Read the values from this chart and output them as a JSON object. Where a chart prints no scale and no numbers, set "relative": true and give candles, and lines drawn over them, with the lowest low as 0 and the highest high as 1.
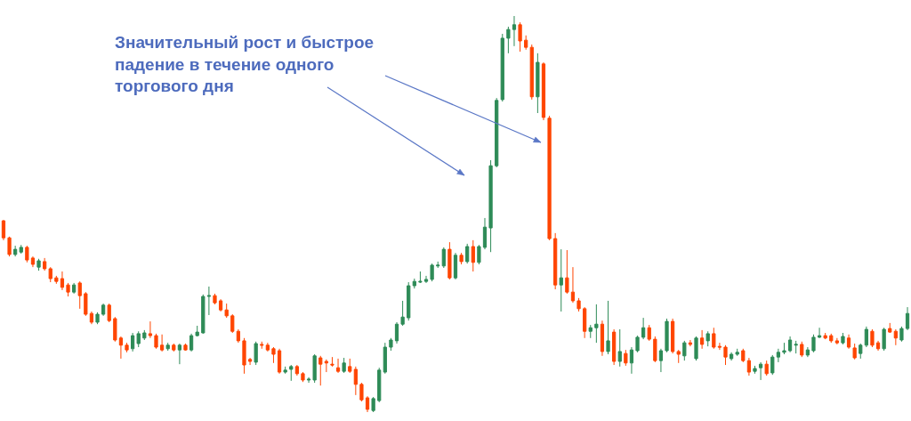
{
  "chart_data": {
    "type": "candlestick",
    "relative": true,
    "annotations": [
      "Значительный рост и быстрое падение в течение одного торгового дня"
    ],
    "categories": [
      null,
      null,
      null,
      null,
      null,
      null,
      null,
      null,
      null,
      null,
      null,
      null,
      null,
      null,
      null,
      null,
      null,
      null,
      null,
      null,
      null,
      null,
      null,
      null,
      null,
      null,
      null,
      null,
      null,
      null,
      null,
      null,
      null,
      null,
      null,
      null,
      null,
      null,
      null,
      null,
      null,
      null,
      null,
      null,
      null,
      null,
      null,
      null,
      null,
      null,
      null,
      null,
      null,
      null,
      null,
      null,
      null,
      null,
      null,
      null,
      null,
      null,
      null,
      null,
      null,
      null,
      null,
      null,
      null,
      null,
      null,
      null,
      null,
      null,
      null,
      null,
      null,
      null,
      null,
      null,
      null,
      null,
      null,
      null,
      null,
      null,
      null,
      null,
      null,
      null,
      null,
      null,
      null,
      null,
      null,
      null,
      null,
      null,
      null,
      null,
      null,
      null,
      null,
      null,
      null,
      null,
      null,
      null,
      null,
      null,
      null,
      null,
      null,
      null,
      null,
      null,
      null,
      null,
      null,
      null,
      null,
      null,
      null,
      null,
      null,
      null,
      null,
      null,
      null,
      null,
      null,
      null,
      null,
      null,
      null,
      null,
      null,
      null,
      null,
      null,
      null,
      null,
      null,
      null,
      null,
      null,
      null,
      null,
      null,
      null,
      null,
      null,
      null,
      null,
      null
    ],
    "ohlc": [
      [
        0.483,
        0.485,
        0.434,
        0.44
      ],
      [
        0.44,
        0.443,
        0.393,
        0.398
      ],
      [
        0.398,
        0.42,
        0.393,
        0.411
      ],
      [
        0.404,
        0.422,
        0.4,
        0.416
      ],
      [
        0.416,
        0.42,
        0.378,
        0.384
      ],
      [
        0.389,
        0.393,
        0.366,
        0.373
      ],
      [
        0.366,
        0.387,
        0.357,
        0.382
      ],
      [
        0.38,
        0.389,
        0.357,
        0.362
      ],
      [
        0.362,
        0.366,
        0.328,
        0.337
      ],
      [
        0.339,
        0.344,
        0.324,
        0.33
      ],
      [
        0.337,
        0.355,
        0.308,
        0.315
      ],
      [
        0.321,
        0.326,
        0.292,
        0.303
      ],
      [
        0.303,
        0.326,
        0.299,
        0.321
      ],
      [
        0.326,
        0.33,
        0.261,
        0.294
      ],
      [
        0.299,
        0.303,
        0.243,
        0.247
      ],
      [
        0.249,
        0.254,
        0.222,
        0.227
      ],
      [
        0.227,
        0.252,
        0.222,
        0.247
      ],
      [
        0.247,
        0.274,
        0.243,
        0.27
      ],
      [
        0.27,
        0.274,
        0.227,
        0.231
      ],
      [
        0.236,
        0.24,
        0.178,
        0.182
      ],
      [
        0.187,
        0.191,
        0.135,
        0.169
      ],
      [
        0.169,
        0.175,
        0.151,
        0.157
      ],
      [
        0.16,
        0.2,
        0.153,
        0.193
      ],
      [
        0.173,
        0.204,
        0.164,
        0.198
      ],
      [
        0.187,
        0.207,
        0.182,
        0.2
      ],
      [
        0.198,
        0.229,
        0.187,
        0.193
      ],
      [
        0.193,
        0.198,
        0.16,
        0.164
      ],
      [
        0.169,
        0.196,
        0.153,
        0.157
      ],
      [
        0.16,
        0.175,
        0.155,
        0.169
      ],
      [
        0.169,
        0.173,
        0.153,
        0.157
      ],
      [
        0.157,
        0.173,
        0.121,
        0.169
      ],
      [
        0.169,
        0.173,
        0.155,
        0.157
      ],
      [
        0.157,
        0.198,
        0.153,
        0.193
      ],
      [
        0.193,
        0.218,
        0.191,
        0.202
      ],
      [
        0.2,
        0.297,
        0.198,
        0.292
      ],
      [
        0.292,
        0.317,
        0.245,
        0.294
      ],
      [
        0.294,
        0.299,
        0.272,
        0.276
      ],
      [
        0.281,
        0.285,
        0.254,
        0.258
      ],
      [
        0.258,
        0.274,
        0.238,
        0.243
      ],
      [
        0.243,
        0.247,
        0.2,
        0.204
      ],
      [
        0.204,
        0.209,
        0.175,
        0.18
      ],
      [
        0.18,
        0.187,
        0.097,
        0.119
      ],
      [
        0.133,
        0.137,
        0.119,
        0.128
      ],
      [
        0.126,
        0.178,
        0.119,
        0.173
      ],
      [
        0.171,
        0.178,
        0.16,
        0.169
      ],
      [
        0.169,
        0.175,
        0.153,
        0.157
      ],
      [
        0.16,
        0.164,
        0.124,
        0.146
      ],
      [
        0.155,
        0.16,
        0.097,
        0.101
      ],
      [
        0.101,
        0.115,
        0.097,
        0.106
      ],
      [
        0.108,
        0.119,
        0.079,
        0.115
      ],
      [
        0.115,
        0.119,
        0.092,
        0.097
      ],
      [
        0.097,
        0.101,
        0.076,
        0.081
      ],
      [
        0.081,
        0.088,
        0.074,
        0.083
      ],
      [
        0.081,
        0.146,
        0.074,
        0.142
      ],
      [
        0.137,
        0.142,
        0.067,
        0.121
      ],
      [
        0.128,
        0.133,
        0.101,
        0.124
      ],
      [
        0.121,
        0.139,
        0.115,
        0.119
      ],
      [
        0.112,
        0.135,
        0.099,
        0.103
      ],
      [
        0.103,
        0.137,
        0.099,
        0.124
      ],
      [
        0.115,
        0.135,
        0.099,
        0.103
      ],
      [
        0.108,
        0.115,
        0.043,
        0.07
      ],
      [
        0.07,
        0.074,
        0.027,
        0.031
      ],
      [
        0.036,
        0.04,
        0,
        0.007
      ],
      [
        0.004,
        0.038,
        0,
        0.034
      ],
      [
        0.029,
        0.112,
        0.025,
        0.106
      ],
      [
        0.101,
        0.175,
        0.097,
        0.164
      ],
      [
        0.164,
        0.187,
        0.155,
        0.182
      ],
      [
        0.18,
        0.227,
        0.173,
        0.222
      ],
      [
        0.222,
        0.281,
        0.218,
        0.24
      ],
      [
        0.238,
        0.328,
        0.231,
        0.319
      ],
      [
        0.319,
        0.337,
        0.312,
        0.33
      ],
      [
        0.328,
        0.355,
        0.326,
        0.33
      ],
      [
        0.33,
        0.344,
        0.326,
        0.335
      ],
      [
        0.335,
        0.375,
        0.33,
        0.371
      ],
      [
        0.369,
        0.38,
        0.364,
        0.371
      ],
      [
        0.369,
        0.416,
        0.364,
        0.411
      ],
      [
        0.411,
        0.429,
        0.335,
        0.339
      ],
      [
        0.339,
        0.402,
        0.335,
        0.396
      ],
      [
        0.396,
        0.402,
        0.373,
        0.38
      ],
      [
        0.38,
        0.425,
        0.375,
        0.418
      ],
      [
        0.418,
        0.434,
        0.355,
        0.378
      ],
      [
        0.378,
        0.422,
        0.373,
        0.418
      ],
      [
        0.416,
        0.49,
        0.411,
        0.467
      ],
      [
        0.465,
        0.636,
        0.404,
        0.622
      ],
      [
        0.622,
        0.793,
        0.618,
        0.787
      ],
      [
        0.789,
        0.955,
        0.784,
        0.944
      ],
      [
        0.944,
        0.973,
        0.906,
        0.966
      ],
      [
        0.966,
        1,
        0.924,
        0.978
      ],
      [
        0.978,
        0.984,
        0.91,
        0.937
      ],
      [
        0.939,
        0.951,
        0.915,
        0.921
      ],
      [
        0.921,
        0.928,
        0.789,
        0.796
      ],
      [
        0.796,
        0.906,
        0.755,
        0.883
      ],
      [
        0.879,
        0.883,
        0.737,
        0.744
      ],
      [
        0.742,
        0.748,
        0.434,
        0.438
      ],
      [
        0.438,
        0.452,
        0.31,
        0.321
      ],
      [
        0.321,
        0.411,
        0.254,
        0.339
      ],
      [
        0.339,
        0.409,
        0.299,
        0.303
      ],
      [
        0.303,
        0.366,
        0.276,
        0.281
      ],
      [
        0.281,
        0.288,
        0.254,
        0.261
      ],
      [
        0.261,
        0.265,
        0.187,
        0.204
      ],
      [
        0.204,
        0.22,
        0.187,
        0.213
      ],
      [
        0.213,
        0.272,
        0.175,
        0.222
      ],
      [
        0.222,
        0.231,
        0.142,
        0.153
      ],
      [
        0.153,
        0.281,
        0.146,
        0.18
      ],
      [
        0.202,
        0.209,
        0.119,
        0.128
      ],
      [
        0.128,
        0.209,
        0.115,
        0.153
      ],
      [
        0.148,
        0.157,
        0.117,
        0.124
      ],
      [
        0.124,
        0.164,
        0.097,
        0.157
      ],
      [
        0.155,
        0.193,
        0.151,
        0.189
      ],
      [
        0.189,
        0.238,
        0.184,
        0.213
      ],
      [
        0.213,
        0.22,
        0.18,
        0.184
      ],
      [
        0.184,
        0.191,
        0.126,
        0.13
      ],
      [
        0.13,
        0.16,
        0.101,
        0.155
      ],
      [
        0.155,
        0.236,
        0.151,
        0.229
      ],
      [
        0.229,
        0.236,
        0.148,
        0.153
      ],
      [
        0.153,
        0.157,
        0.124,
        0.146
      ],
      [
        0.142,
        0.18,
        0.13,
        0.175
      ],
      [
        0.175,
        0.182,
        0.166,
        0.171
      ],
      [
        0.135,
        0.191,
        0.13,
        0.187
      ],
      [
        0.187,
        0.207,
        0.16,
        0.171
      ],
      [
        0.18,
        0.204,
        0.166,
        0.198
      ],
      [
        0.198,
        0.213,
        0.16,
        0.164
      ],
      [
        0.166,
        0.175,
        0.157,
        0.164
      ],
      [
        0.164,
        0.169,
        0.119,
        0.139
      ],
      [
        0.135,
        0.151,
        0.13,
        0.146
      ],
      [
        0.146,
        0.16,
        0.142,
        0.151
      ],
      [
        0.155,
        0.16,
        0.126,
        0.13
      ],
      [
        0.13,
        0.137,
        0.092,
        0.101
      ],
      [
        0.103,
        0.117,
        0.097,
        0.11
      ],
      [
        0.112,
        0.126,
        0.081,
        0.121
      ],
      [
        0.121,
        0.13,
        0.092,
        0.097
      ],
      [
        0.099,
        0.144,
        0.094,
        0.139
      ],
      [
        0.139,
        0.16,
        0.126,
        0.151
      ],
      [
        0.151,
        0.175,
        0.146,
        0.155
      ],
      [
        0.155,
        0.191,
        0.151,
        0.182
      ],
      [
        0.169,
        0.18,
        0.148,
        0.171
      ],
      [
        0.171,
        0.178,
        0.139,
        0.144
      ],
      [
        0.144,
        0.164,
        0.139,
        0.157
      ],
      [
        0.155,
        0.196,
        0.151,
        0.189
      ],
      [
        0.189,
        0.213,
        0.187,
        0.193
      ],
      [
        0.193,
        0.2,
        0.184,
        0.187
      ],
      [
        0.193,
        0.198,
        0.175,
        0.18
      ],
      [
        0.18,
        0.187,
        0.171,
        0.175
      ],
      [
        0.175,
        0.2,
        0.171,
        0.191
      ],
      [
        0.187,
        0.196,
        0.16,
        0.164
      ],
      [
        0.162,
        0.173,
        0.133,
        0.137
      ],
      [
        0.148,
        0.173,
        0.135,
        0.169
      ],
      [
        0.169,
        0.216,
        0.164,
        0.209
      ],
      [
        0.204,
        0.209,
        0.164,
        0.169
      ],
      [
        0.175,
        0.18,
        0.155,
        0.16
      ],
      [
        0.16,
        0.213,
        0.155,
        0.209
      ],
      [
        0.211,
        0.225,
        0.2,
        0.202
      ],
      [
        0.204,
        0.209,
        0.169,
        0.187
      ],
      [
        0.182,
        0.216,
        0.178,
        0.211
      ],
      [
        0.211,
        0.265,
        0.207,
        0.249
      ]
    ],
    "colors": [
      "#ff4500",
      "#ff4500",
      "#2e8b57",
      "#2e8b57",
      "#ff4500",
      "#ff4500",
      "#2e8b57",
      "#ff4500",
      "#ff4500",
      "#ff4500",
      "#ff4500",
      "#ff4500",
      "#2e8b57",
      "#ff4500",
      "#ff4500",
      "#ff4500",
      "#2e8b57",
      "#2e8b57",
      "#ff4500",
      "#ff4500",
      "#ff4500",
      "#ff4500",
      "#2e8b57",
      "#2e8b57",
      "#2e8b57",
      "#ff4500",
      "#ff4500",
      "#ff4500",
      "#2e8b57",
      "#ff4500",
      "#2e8b57",
      "#ff4500",
      "#2e8b57",
      "#2e8b57",
      "#2e8b57",
      "#2e8b57",
      "#ff4500",
      "#ff4500",
      "#ff4500",
      "#ff4500",
      "#ff4500",
      "#ff4500",
      "#ff4500",
      "#2e8b57",
      "#ff4500",
      "#ff4500",
      "#ff4500",
      "#ff4500",
      "#2e8b57",
      "#2e8b57",
      "#ff4500",
      "#ff4500",
      "#2e8b57",
      "#2e8b57",
      "#ff4500",
      "#ff4500",
      "#ff4500",
      "#ff4500",
      "#2e8b57",
      "#ff4500",
      "#ff4500",
      "#ff4500",
      "#ff4500",
      "#2e8b57",
      "#2e8b57",
      "#2e8b57",
      "#2e8b57",
      "#2e8b57",
      "#2e8b57",
      "#2e8b57",
      "#2e8b57",
      "#2e8b57",
      "#2e8b57",
      "#2e8b57",
      "#2e8b57",
      "#2e8b57",
      "#ff4500",
      "#2e8b57",
      "#ff4500",
      "#2e8b57",
      "#ff4500",
      "#2e8b57",
      "#2e8b57",
      "#2e8b57",
      "#2e8b57",
      "#2e8b57",
      "#2e8b57",
      "#2e8b57",
      "#ff4500",
      "#ff4500",
      "#ff4500",
      "#2e8b57",
      "#ff4500",
      "#ff4500",
      "#ff4500",
      "#2e8b57",
      "#ff4500",
      "#ff4500",
      "#ff4500",
      "#ff4500",
      "#2e8b57",
      "#2e8b57",
      "#ff4500",
      "#2e8b57",
      "#ff4500",
      "#2e8b57",
      "#ff4500",
      "#2e8b57",
      "#2e8b57",
      "#2e8b57",
      "#ff4500",
      "#ff4500",
      "#2e8b57",
      "#2e8b57",
      "#ff4500",
      "#ff4500",
      "#2e8b57",
      "#ff4500",
      "#2e8b57",
      "#ff4500",
      "#2e8b57",
      "#ff4500",
      "#ff4500",
      "#ff4500",
      "#2e8b57",
      "#2e8b57",
      "#ff4500",
      "#ff4500",
      "#2e8b57",
      "#2e8b57",
      "#ff4500",
      "#2e8b57",
      "#2e8b57",
      "#2e8b57",
      "#2e8b57",
      "#2e8b57",
      "#ff4500",
      "#2e8b57",
      "#2e8b57",
      "#2e8b57",
      "#ff4500",
      "#ff4500",
      "#ff4500",
      "#2e8b57",
      "#ff4500",
      "#ff4500",
      "#2e8b57",
      "#2e8b57",
      "#ff4500",
      "#ff4500",
      "#2e8b57",
      "#ff4500",
      "#ff4500",
      "#2e8b57",
      "#2e8b57"
    ]
  }
}
